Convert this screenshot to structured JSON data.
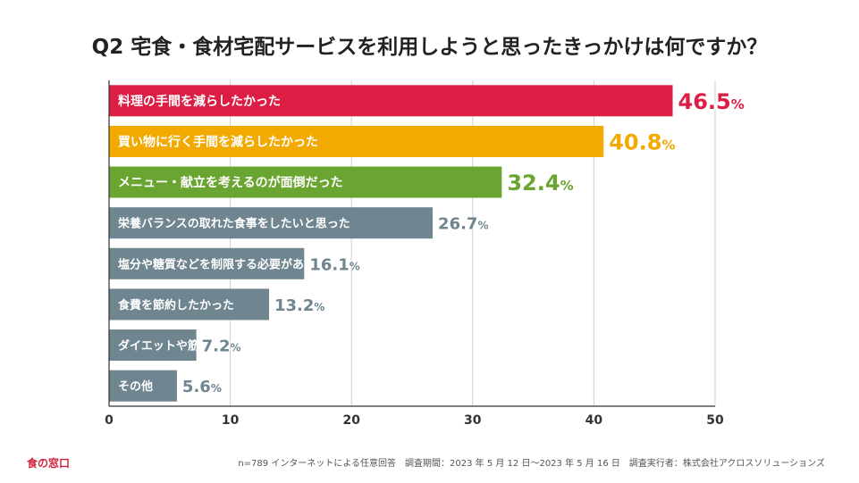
{
  "header": {
    "title": "Q2 宅食・食材宅配サービスを利用しようと思ったきっかけは何ですか？"
  },
  "footer": {
    "brand": "食の窓口",
    "note": "n=789 インターネットによる任意回答　調査期間：2023 年 5 月 12 日〜2023 年 5 月 16 日　調査実行者：株式会社アクロスソリューションズ"
  },
  "chart_data": {
    "type": "bar",
    "orientation": "horizontal",
    "title": "Q2 宅食・食材宅配サービスを利用しようと思ったきっかけは何ですか？",
    "categories": [
      "料理の手間を減らしたかった",
      "買い物に行く手間を減らしたかった",
      "メニュー・献立を考えるのが面倒だった",
      "栄養バランスの取れた食事をしたいと思った",
      "塩分や糖質などを制限する必要があった",
      "食費を節約したかった",
      "ダイエットや筋トレをしたかった",
      "その他"
    ],
    "values": [
      46.5,
      40.8,
      32.4,
      26.7,
      16.1,
      13.2,
      7.2,
      5.6
    ],
    "unit": "%",
    "colors": [
      "#dc1e45",
      "#f2a900",
      "#6aa431",
      "#6f8590",
      "#6f8590",
      "#6f8590",
      "#6f8590",
      "#6f8590"
    ],
    "label_colors": [
      "#dc1e45",
      "#f2a900",
      "#6aa431",
      "#6f8590",
      "#6f8590",
      "#6f8590",
      "#6f8590",
      "#6f8590"
    ],
    "xlim": [
      0,
      50
    ],
    "xticks": [
      0,
      10,
      20,
      30,
      40,
      50
    ],
    "grid": true,
    "xlabel": "",
    "ylabel": ""
  }
}
